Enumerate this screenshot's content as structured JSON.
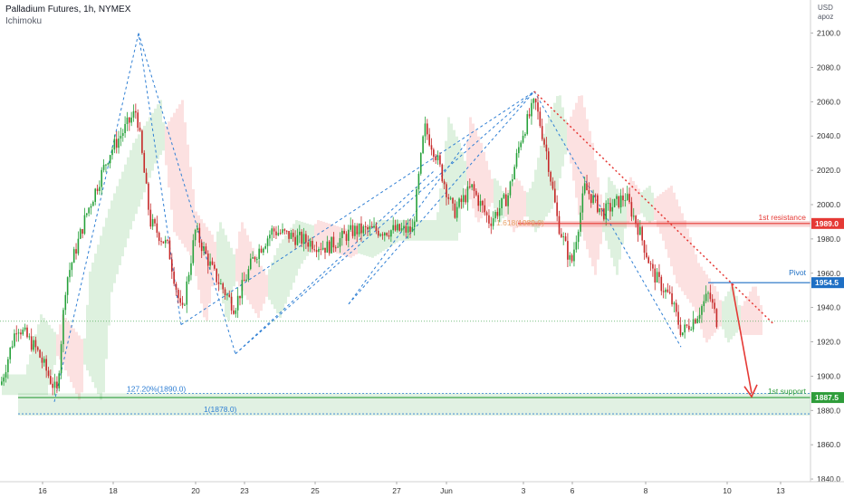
{
  "header": {
    "title": "Palladium Futures, 1h, NYMEX",
    "indicator": "Ichimoku"
  },
  "axis": {
    "currency": "USD",
    "unit": "apoz"
  },
  "colors": {
    "candle_up": "#26a13a",
    "candle_down": "#c62828",
    "resistance": "#e53935",
    "pivot": "#1e6fc4",
    "support": "#2e9c3a",
    "pattern_line": "#2f7fd4",
    "trend_line": "#e53935",
    "cloud_bull": "#d8efd9",
    "cloud_bear": "#fbdcdc"
  },
  "chart_data": {
    "type": "line",
    "title": "Palladium Futures, 1h, NYMEX",
    "xlabel": "",
    "ylabel": "",
    "ylim": [
      1840,
      2110
    ],
    "y_ticks": [
      "2100.0",
      "2080.0",
      "2060.0",
      "2040.0",
      "2020.0",
      "2000.0",
      "1980.0",
      "1960.0",
      "1940.0",
      "1920.0",
      "1900.0",
      "1880.0",
      "1860.0",
      "1840.0"
    ],
    "x_ticks": [
      "16",
      "18",
      "20",
      "23",
      "25",
      "27",
      "Jun",
      "3",
      "6",
      "8",
      "10",
      "13"
    ],
    "grid": false,
    "levels": [
      {
        "name": "1st resistance",
        "value": 1989.0,
        "badge": "1989.0"
      },
      {
        "name": "Pivot",
        "value": 1954.5,
        "badge": "1954.5"
      },
      {
        "name": "1st support",
        "value": 1887.5,
        "badge": "1887.5"
      }
    ],
    "fib_labels": [
      {
        "text": "127.20%(1890.0)",
        "value": 1890.0
      },
      {
        "text": "1(1878.0)",
        "value": 1878.0
      },
      {
        "text": "1.618(1989.0)",
        "value": 1989.0
      }
    ],
    "series": [
      {
        "name": "Palladium Futures",
        "x": [
          "15",
          "16",
          "16",
          "17",
          "18",
          "18",
          "19",
          "19",
          "20",
          "21",
          "22",
          "23",
          "24",
          "25",
          "26",
          "27",
          "27",
          "28",
          "Jun",
          "2",
          "3",
          "3",
          "4",
          "5",
          "6",
          "7",
          "8",
          "8",
          "9",
          "9",
          "10"
        ],
        "values": [
          1895,
          1930,
          1890,
          1955,
          2030,
          2060,
          2010,
          1975,
          1955,
          1985,
          1940,
          1970,
          1990,
          1985,
          1975,
          1990,
          2040,
          1995,
          2020,
          2000,
          2040,
          2065,
          2025,
          1965,
          2010,
          2005,
          1995,
          1960,
          1935,
          1950,
          1930
        ]
      }
    ]
  }
}
